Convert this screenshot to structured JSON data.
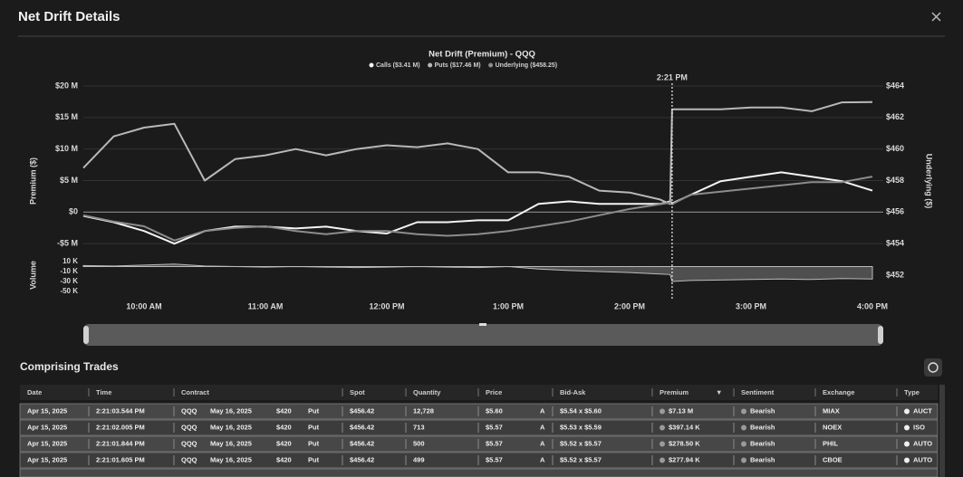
{
  "header": {
    "title": "Net Drift Details"
  },
  "chart_data": {
    "type": "line",
    "title": "Net Drift (Premium) - QQQ",
    "y_label": "Premium ($)",
    "y2_label": "Underlying ($)",
    "x": [
      "9:30 AM",
      "9:45 AM",
      "10:00 AM",
      "10:15 AM",
      "10:30 AM",
      "10:45 AM",
      "11:00 AM",
      "11:15 AM",
      "11:30 AM",
      "11:45 AM",
      "12:00 PM",
      "12:15 PM",
      "12:30 PM",
      "12:45 PM",
      "1:00 PM",
      "1:15 PM",
      "1:30 PM",
      "1:45 PM",
      "2:00 PM",
      "2:15 PM",
      "2:20 PM",
      "2:21 PM",
      "2:30 PM",
      "2:45 PM",
      "3:00 PM",
      "3:15 PM",
      "3:30 PM",
      "3:45 PM",
      "4:00 PM"
    ],
    "xlim": [
      "9:30 AM",
      "4:00 PM"
    ],
    "xticks": [
      "10:00 AM",
      "11:00 AM",
      "12:00 PM",
      "1:00 PM",
      "2:00 PM",
      "3:00 PM",
      "4:00 PM"
    ],
    "ylim": [
      -10000000,
      20000000
    ],
    "yticks": [
      {
        "value": 20000000,
        "label": "$20 M"
      },
      {
        "value": 15000000,
        "label": "$15 M"
      },
      {
        "value": 10000000,
        "label": "$10 M"
      },
      {
        "value": 5000000,
        "label": "$5 M"
      },
      {
        "value": 0,
        "label": "$0"
      },
      {
        "value": -5000000,
        "label": "-$5 M"
      }
    ],
    "y2lim": [
      452,
      464
    ],
    "y2ticks": [
      {
        "value": 464,
        "label": "$464"
      },
      {
        "value": 462,
        "label": "$462"
      },
      {
        "value": 460,
        "label": "$460"
      },
      {
        "value": 458,
        "label": "$458"
      },
      {
        "value": 456,
        "label": "$456"
      },
      {
        "value": 454,
        "label": "$454"
      },
      {
        "value": 452,
        "label": "$452"
      }
    ],
    "grid": true,
    "series": [
      {
        "name": "Calls ($3.41 M)",
        "color": "#f4f4f4",
        "values": [
          -600000,
          -1600000,
          -3000000,
          -5000000,
          -3000000,
          -2300000,
          -2300000,
          -2600000,
          -2300000,
          -3000000,
          -3400000,
          -1600000,
          -1600000,
          -1300000,
          -1300000,
          1300000,
          1700000,
          1300000,
          1300000,
          1300000,
          1700000,
          1400000,
          2700000,
          4900000,
          5600000,
          6300000,
          5600000,
          4900000,
          3410000
        ]
      },
      {
        "name": "Puts ($17.46 M)",
        "color": "#b8b8b8",
        "values": [
          7000000,
          12000000,
          13400000,
          14000000,
          5000000,
          8400000,
          9000000,
          10000000,
          9000000,
          10000000,
          10600000,
          10300000,
          10900000,
          10000000,
          6300000,
          6300000,
          5600000,
          3400000,
          3100000,
          2000000,
          1300000,
          16300000,
          16300000,
          16300000,
          16600000,
          16600000,
          16000000,
          17400000,
          17460000
        ]
      },
      {
        "name": "Underlying ($458.25)",
        "color": "#8c8c8c",
        "axis": "y2",
        "values": [
          455.8,
          455.4,
          455.1,
          454.2,
          454.8,
          455.0,
          455.1,
          454.8,
          454.6,
          454.8,
          454.8,
          454.6,
          454.5,
          454.6,
          454.8,
          455.1,
          455.4,
          455.8,
          456.2,
          456.5,
          456.6,
          456.5,
          457.1,
          457.3,
          457.5,
          457.7,
          457.9,
          457.9,
          458.25
        ]
      }
    ],
    "volume": {
      "label": "Volume",
      "color": "#7a7a7a",
      "ylim": [
        -50000,
        10000
      ],
      "yticks": [
        {
          "value": 10000,
          "label": "10 K"
        },
        {
          "value": -10000,
          "label": "-10 K"
        },
        {
          "value": -30000,
          "label": "-30 K"
        },
        {
          "value": -50000,
          "label": "-50 K"
        }
      ],
      "values": [
        2000,
        1000,
        3000,
        5000,
        1000,
        0,
        -1000,
        0,
        -1000,
        -2000,
        -1000,
        0,
        -1000,
        -2000,
        0,
        -5000,
        -8000,
        -10000,
        -12000,
        -15000,
        -16000,
        -30000,
        -28000,
        -27000,
        -26000,
        -25000,
        -26000,
        -24000,
        -25000
      ]
    },
    "annotation": {
      "x": "2:21 PM"
    }
  },
  "table": {
    "title": "Comprising Trades",
    "columns": [
      "Date",
      "Time",
      "Contract",
      "Spot",
      "Quantity",
      "Price",
      "Bid-Ask",
      "Premium",
      "Sentiment",
      "Exchange",
      "Type"
    ],
    "rows": [
      [
        "Apr 15, 2025",
        "2:21:03.544 PM",
        [
          "QQQ",
          "May 16, 2025",
          "$420",
          "Put"
        ],
        "$456.42",
        "12,728",
        [
          "$5.60",
          "A"
        ],
        "$5.54 x $5.60",
        "$7.13 M",
        "Bearish",
        "MIAX",
        "AUCT"
      ],
      [
        "Apr 15, 2025",
        "2:21:02.005 PM",
        [
          "QQQ",
          "May 16, 2025",
          "$420",
          "Put"
        ],
        "$456.42",
        "713",
        [
          "$5.57",
          "A"
        ],
        "$5.53 x $5.59",
        "$397.14 K",
        "Bearish",
        "NOEX",
        "ISO"
      ],
      [
        "Apr 15, 2025",
        "2:21:01.844 PM",
        [
          "QQQ",
          "May 16, 2025",
          "$420",
          "Put"
        ],
        "$456.42",
        "500",
        [
          "$5.57",
          "A"
        ],
        "$5.52 x $5.57",
        "$278.50 K",
        "Bearish",
        "PHIL",
        "AUTO"
      ],
      [
        "Apr 15, 2025",
        "2:21:01.605 PM",
        [
          "QQQ",
          "May 16, 2025",
          "$420",
          "Put"
        ],
        "$456.42",
        "499",
        [
          "$5.57",
          "A"
        ],
        "$5.52 x $5.57",
        "$277.94 K",
        "Bearish",
        "CBOE",
        "AUTO"
      ]
    ]
  }
}
